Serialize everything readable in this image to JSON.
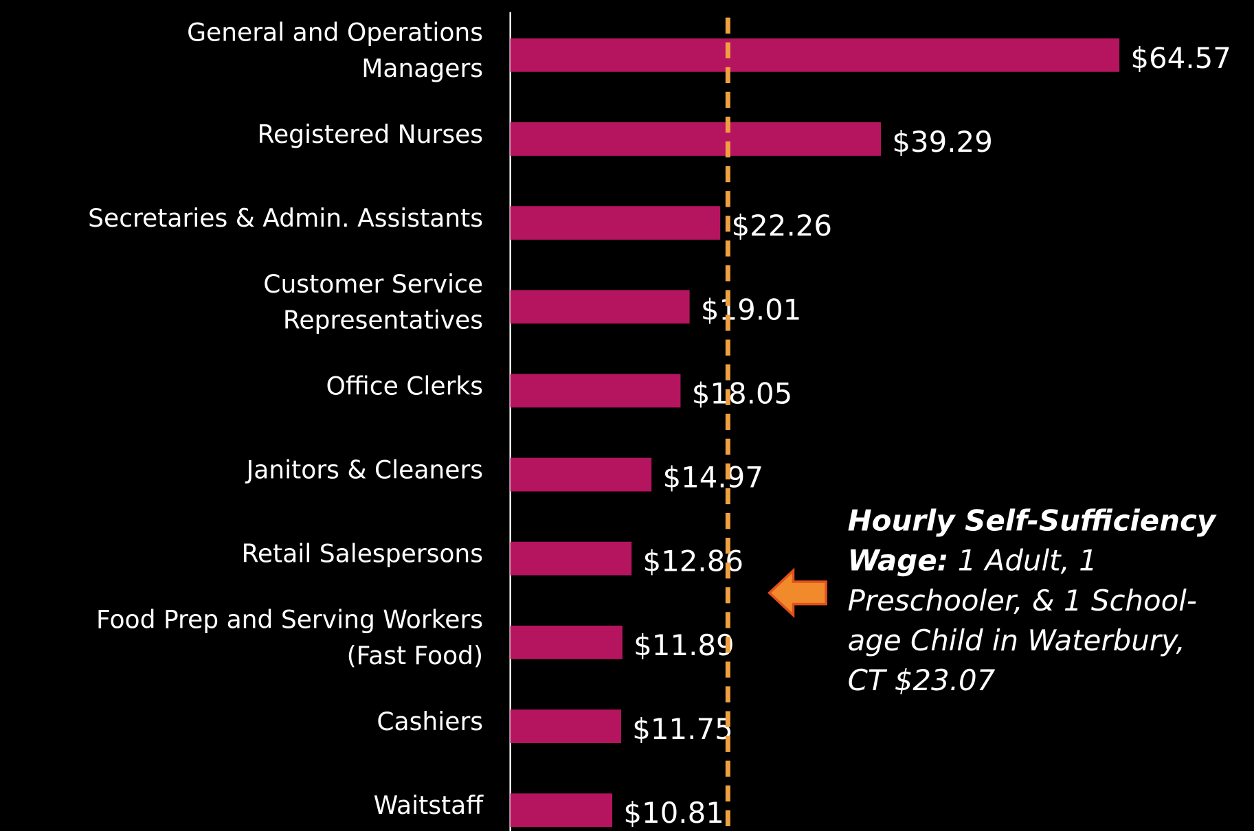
{
  "chart_data": {
    "type": "hbar",
    "categories": [
      "General and Operations\nManagers",
      "Registered Nurses",
      "Secretaries & Admin. Assistants",
      "Customer Service\nRepresentatives",
      "Office Clerks",
      "Janitors & Cleaners",
      "Retail Salespersons",
      "Food Prep and Serving Workers\n(Fast Food)",
      "Cashiers",
      "Waitstaff"
    ],
    "values": [
      64.57,
      39.29,
      22.26,
      19.01,
      18.05,
      14.97,
      12.86,
      11.89,
      11.75,
      10.81
    ],
    "value_labels": [
      "$64.57",
      "$39.29",
      "$22.26",
      "$19.01",
      "$18.05",
      "$14.97",
      "$12.86",
      "$11.89",
      "$11.75",
      "$10.81"
    ],
    "color": "#b5145f",
    "xlim": [
      0,
      78
    ],
    "reference_line": {
      "value": 23.07,
      "color": "#f0a040"
    },
    "annotation": {
      "bold": "Hourly Self-Sufficiency Wage:",
      "text": "1 Adult, 1 Preschooler, & 1 School-age Child in Waterbury, CT $23.07"
    }
  }
}
